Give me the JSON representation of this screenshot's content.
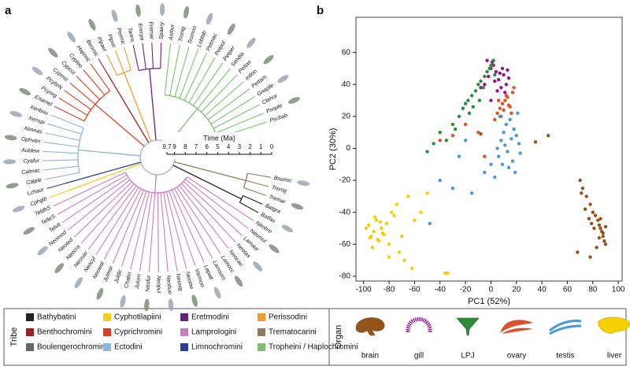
{
  "panel_a": {
    "label": "a",
    "time_axis": {
      "title": "Time (Ma)",
      "lim": [
        9.7,
        0
      ],
      "ticks": [
        9.7,
        9,
        8,
        7,
        6,
        5,
        4,
        3,
        2,
        1,
        0
      ]
    },
    "tree": {
      "clades": [
        {
          "color": "#8a7f5c",
          "leaves": [
            "Boumic",
            "Trenig",
            "Tremar"
          ]
        },
        {
          "color": "#222222",
          "leaves": [
            "Batgra",
            "Batfas"
          ]
        },
        {
          "color": "#c77fbf",
          "leaves": [
            "Neobre",
            "Neomul",
            "Lamaur",
            "Neotas",
            "Neocau",
            "Lamocc",
            "Lamsom",
            "Lepatt",
            "Varmoo",
            "Neotoe",
            "Neonig",
            "Neobue",
            "Neopul",
            "Neofur",
            "Julorn",
            "Chabri",
            "Juldic",
            "Julmar",
            "Neowal",
            "Neocyl",
            "Neosav",
            "Neocra",
            "Neoted",
            "Neomed",
            "Telvit",
            "TelteS",
            "TeldhS"
          ]
        },
        {
          "color": "#f2cf1d",
          "leaves": [
            "Cphgib"
          ]
        },
        {
          "color": "#2b3d9a",
          "leaves": [
            "Lchaur"
          ]
        },
        {
          "color": "#8db4d9",
          "leaves": [
            "Calple",
            "Calmac",
            "Cyafur",
            "Auldew",
            "Ophven",
            "Xennas",
            "Xenspi",
            "Xenbou"
          ]
        },
        {
          "color": "#d9401e",
          "leaves": [
            "Enamel",
            "Pcyorg",
            "PcybrN",
            "Cypmic",
            "Cypcol",
            "Cypleo",
            "Hapmic"
          ]
        },
        {
          "color": "#9e1f24",
          "leaves": [
            "Benmic"
          ]
        },
        {
          "color": "#f29a30",
          "leaves": [
            "Plpaur",
            "Plpstr",
            "Permic"
          ]
        },
        {
          "color": "#6b1f7c",
          "leaves": [
            "Tanris",
            "Erecya",
            "Eremar",
            "Spaery"
          ]
        },
        {
          "color": "#7cc26a",
          "leaves": [
            "Astbur",
            "Tronig",
            "Tromoo",
            "Lobtab",
            "Petmac",
            "Petpol",
            "Petper",
            "Simdia",
            "Pettas",
            "Intloo",
            "Pettam",
            "Gnapfe",
            "Ctehor",
            "Psople",
            "Pscbab"
          ]
        }
      ]
    }
  },
  "chart_data": {
    "type": "scatter",
    "panel_label": "b",
    "xlabel": "PC1 (52%)",
    "ylabel": "PC2 (30%)",
    "xlim": [
      -106,
      103
    ],
    "ylim": [
      -83,
      82
    ],
    "xticks": [
      -100,
      -80,
      -60,
      -40,
      -20,
      0,
      20,
      40,
      60,
      80,
      100
    ],
    "yticks": [
      -80,
      -60,
      -40,
      -20,
      0,
      20,
      40,
      60
    ],
    "series": [
      {
        "name": "brain",
        "color": "#93541c",
        "x": [
          70,
          72,
          75,
          78,
          80,
          82,
          84,
          85,
          86,
          87,
          88,
          89,
          90,
          83,
          81,
          79,
          77,
          74,
          71,
          68,
          85,
          88,
          90,
          86,
          78,
          45,
          35,
          -8
        ],
        "y": [
          -20,
          -25,
          -30,
          -35,
          -40,
          -42,
          -45,
          -48,
          -50,
          -52,
          -55,
          -58,
          -60,
          -62,
          -50,
          -47,
          -44,
          -38,
          -28,
          -65,
          -56,
          -53,
          -49,
          -44,
          -68,
          8,
          4,
          9
        ]
      },
      {
        "name": "gill",
        "color": "#8e1b8e",
        "x": [
          -5,
          -2,
          0,
          2,
          4,
          6,
          8,
          10,
          12,
          14,
          -3,
          1,
          5,
          9,
          11,
          3,
          7,
          13,
          -8,
          0
        ],
        "y": [
          40,
          45,
          50,
          52,
          48,
          43,
          38,
          46,
          40,
          44,
          55,
          54,
          36,
          50,
          35,
          42,
          47,
          49,
          38,
          30
        ]
      },
      {
        "name": "LPJ",
        "color": "#2e8b3e",
        "x": [
          -25,
          -22,
          -20,
          -18,
          -15,
          -12,
          -10,
          -8,
          -5,
          -3,
          0,
          2,
          -14,
          -17,
          -6,
          -1,
          -30,
          -40,
          -35,
          -45,
          -50,
          -28,
          -9,
          3
        ],
        "y": [
          20,
          25,
          28,
          30,
          33,
          36,
          40,
          42,
          45,
          48,
          52,
          55,
          26,
          22,
          38,
          50,
          15,
          10,
          5,
          3,
          -2,
          12,
          30,
          46
        ]
      },
      {
        "name": "ovary",
        "color": "#e2502a",
        "x": [
          3,
          5,
          7,
          9,
          11,
          13,
          15,
          17,
          8,
          10,
          12,
          14,
          6,
          16,
          18,
          -10,
          -20,
          -30,
          -40,
          -5
        ],
        "y": [
          18,
          22,
          25,
          28,
          30,
          32,
          26,
          35,
          20,
          24,
          33,
          27,
          30,
          22,
          38,
          10,
          15,
          8,
          5,
          -5
        ]
      },
      {
        "name": "testis",
        "color": "#4a9ad8",
        "x": [
          5,
          8,
          10,
          12,
          15,
          18,
          20,
          22,
          6,
          9,
          14,
          17,
          11,
          13,
          16,
          19,
          3,
          7,
          0,
          -5,
          -20,
          -25,
          -30,
          -40,
          -48,
          -15,
          23,
          21
        ],
        "y": [
          0,
          5,
          10,
          15,
          18,
          12,
          8,
          3,
          -5,
          -10,
          -12,
          -8,
          2,
          -2,
          6,
          -15,
          -18,
          20,
          -10,
          -15,
          5,
          -5,
          -25,
          -20,
          -47,
          -28,
          -3,
          22
        ]
      },
      {
        "name": "liver",
        "color": "#f5cf00",
        "x": [
          -98,
          -96,
          -94,
          -92,
          -90,
          -88,
          -86,
          -84,
          -82,
          -80,
          -93,
          -91,
          -87,
          -85,
          -89,
          -95,
          -78,
          -74,
          -70,
          -65,
          -60,
          -72,
          -68,
          -55,
          -50,
          -62,
          -80,
          -76,
          -36,
          -34
        ],
        "y": [
          -50,
          -48,
          -55,
          -52,
          -45,
          -58,
          -50,
          -54,
          -47,
          -60,
          -62,
          -43,
          -46,
          -53,
          -57,
          -56,
          -40,
          -35,
          -55,
          -30,
          -45,
          -65,
          -70,
          -40,
          -28,
          -75,
          -68,
          -42,
          -78,
          -78
        ]
      }
    ]
  },
  "legend": {
    "tribe_title": "Tribe",
    "tribes": [
      {
        "name": "Bathybatini",
        "color": "#222222"
      },
      {
        "name": "Benthochromini",
        "color": "#9e1f24"
      },
      {
        "name": "Boulengerochromini",
        "color": "#666666"
      },
      {
        "name": "Cyphotilapiini",
        "color": "#f2cf1d"
      },
      {
        "name": "Cyprichromini",
        "color": "#d9401e"
      },
      {
        "name": "Ectodini",
        "color": "#8db4d9"
      },
      {
        "name": "Eretmodini",
        "color": "#6b1f7c"
      },
      {
        "name": "Lamprologini",
        "color": "#c77fbf"
      },
      {
        "name": "Limnochromini",
        "color": "#2b3d9a"
      },
      {
        "name": "Perissodini",
        "color": "#f29a30"
      },
      {
        "name": "Trematocarini",
        "color": "#8a7f5c"
      },
      {
        "name": "Tropheini / Haplochromini",
        "color": "#7cc26a"
      }
    ],
    "organ_title": "Organ"
  }
}
